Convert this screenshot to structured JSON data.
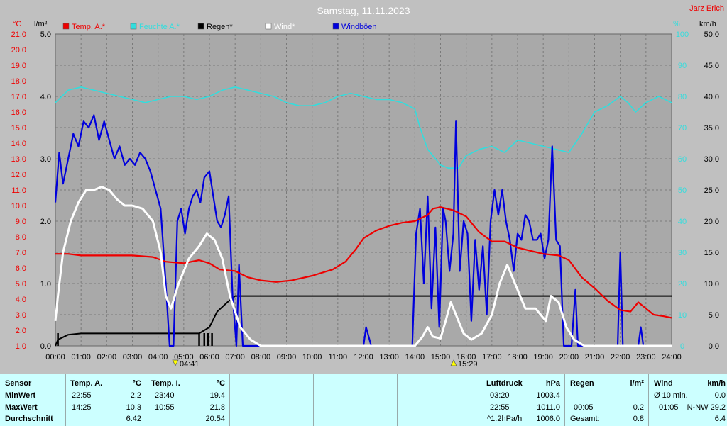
{
  "header": {
    "title": "Samstag, 11.11.2023",
    "author": "Jarz Erich",
    "unit_c": "°C",
    "unit_lm2": "l/m²",
    "unit_pct": "%",
    "unit_kmh": "km/h"
  },
  "legend": [
    {
      "name": "Temp. A.*",
      "color": "#ee0000"
    },
    {
      "name": "Feuchte A.*",
      "color": "#33dddd"
    },
    {
      "name": "Regen*",
      "color": "#000000"
    },
    {
      "name": "Wind*",
      "color": "#ffffff"
    },
    {
      "name": "Windböen",
      "color": "#0000dd"
    }
  ],
  "markers": {
    "sunrise": "04:41",
    "sunset": "15:29"
  },
  "chart_data": {
    "type": "line",
    "x_range": [
      0,
      24
    ],
    "x_ticks": [
      "00:00",
      "01:00",
      "02:00",
      "03:00",
      "04:00",
      "05:00",
      "06:00",
      "07:00",
      "08:00",
      "09:00",
      "10:00",
      "11:00",
      "12:00",
      "13:00",
      "14:00",
      "15:00",
      "16:00",
      "17:00",
      "18:00",
      "19:00",
      "20:00",
      "21:00",
      "22:00",
      "23:00",
      "24:00"
    ],
    "axes": {
      "temperature_c": {
        "range": [
          1.0,
          21.0
        ],
        "ticks": [
          "1.0",
          "2.0",
          "3.0",
          "4.0",
          "5.0",
          "6.0",
          "7.0",
          "8.0",
          "9.0",
          "10.0",
          "11.0",
          "12.0",
          "13.0",
          "14.0",
          "15.0",
          "16.0",
          "17.0",
          "18.0",
          "19.0",
          "20.0",
          "21.0"
        ]
      },
      "rain_lm2": {
        "range": [
          0.0,
          5.0
        ],
        "ticks": [
          "0.0",
          "1.0",
          "2.0",
          "3.0",
          "4.0",
          "5.0"
        ]
      },
      "humidity_pct": {
        "range": [
          0,
          100
        ],
        "ticks": [
          "0",
          "10",
          "20",
          "30",
          "40",
          "50",
          "60",
          "70",
          "80",
          "90",
          "100"
        ]
      },
      "wind_kmh": {
        "range": [
          0.0,
          50.0
        ],
        "ticks": [
          "0.0",
          "5.0",
          "10.0",
          "15.0",
          "20.0",
          "25.0",
          "30.0",
          "35.0",
          "40.0",
          "45.0",
          "50.0"
        ]
      }
    },
    "grid": true,
    "series": [
      {
        "name": "Temp. A.*",
        "axis": "temperature_c",
        "color": "#ee0000",
        "points": [
          [
            0,
            6.9
          ],
          [
            0.5,
            6.9
          ],
          [
            1,
            6.8
          ],
          [
            2,
            6.8
          ],
          [
            3,
            6.8
          ],
          [
            3.8,
            6.7
          ],
          [
            4.3,
            6.4
          ],
          [
            5,
            6.3
          ],
          [
            5.6,
            6.5
          ],
          [
            6,
            6.3
          ],
          [
            6.4,
            5.9
          ],
          [
            7,
            5.8
          ],
          [
            7.5,
            5.4
          ],
          [
            8,
            5.2
          ],
          [
            8.6,
            5.1
          ],
          [
            9.2,
            5.2
          ],
          [
            10,
            5.5
          ],
          [
            10.8,
            5.9
          ],
          [
            11.3,
            6.4
          ],
          [
            11.7,
            7.2
          ],
          [
            12,
            7.9
          ],
          [
            12.5,
            8.4
          ],
          [
            13,
            8.7
          ],
          [
            13.5,
            8.9
          ],
          [
            14,
            9.0
          ],
          [
            14.5,
            9.4
          ],
          [
            14.7,
            9.8
          ],
          [
            15,
            9.9
          ],
          [
            15.5,
            9.7
          ],
          [
            16,
            9.3
          ],
          [
            16.5,
            8.3
          ],
          [
            17,
            7.7
          ],
          [
            17.5,
            7.7
          ],
          [
            18,
            7.3
          ],
          [
            18.5,
            7.1
          ],
          [
            19,
            6.9
          ],
          [
            19.6,
            6.8
          ],
          [
            20,
            6.5
          ],
          [
            20.5,
            5.4
          ],
          [
            21,
            4.7
          ],
          [
            21.5,
            3.9
          ],
          [
            22,
            3.3
          ],
          [
            22.4,
            3.2
          ],
          [
            22.7,
            3.8
          ],
          [
            23,
            3.4
          ],
          [
            23.3,
            3.0
          ],
          [
            23.7,
            2.9
          ],
          [
            24,
            2.8
          ]
        ]
      },
      {
        "name": "Feuchte A.*",
        "axis": "humidity_pct",
        "color": "#33dddd",
        "points": [
          [
            0,
            78
          ],
          [
            0.5,
            82
          ],
          [
            1,
            83
          ],
          [
            1.5,
            82
          ],
          [
            2,
            81
          ],
          [
            2.5,
            80
          ],
          [
            3,
            79
          ],
          [
            3.5,
            78
          ],
          [
            4,
            79
          ],
          [
            4.5,
            80
          ],
          [
            5,
            80
          ],
          [
            5.5,
            79
          ],
          [
            6,
            80
          ],
          [
            6.5,
            82
          ],
          [
            7,
            83
          ],
          [
            7.5,
            82
          ],
          [
            8,
            81
          ],
          [
            8.5,
            80
          ],
          [
            9,
            78
          ],
          [
            9.5,
            77
          ],
          [
            10,
            77
          ],
          [
            10.5,
            78
          ],
          [
            11,
            80
          ],
          [
            11.5,
            81
          ],
          [
            12,
            80
          ],
          [
            12.5,
            79
          ],
          [
            13,
            79
          ],
          [
            13.5,
            78
          ],
          [
            14,
            76
          ],
          [
            14.2,
            70
          ],
          [
            14.5,
            63
          ],
          [
            15,
            58
          ],
          [
            15.3,
            57
          ],
          [
            15.7,
            57
          ],
          [
            16,
            61
          ],
          [
            16.5,
            63
          ],
          [
            17,
            64
          ],
          [
            17.5,
            62
          ],
          [
            18,
            66
          ],
          [
            18.5,
            65
          ],
          [
            19,
            64
          ],
          [
            19.5,
            63
          ],
          [
            20,
            62
          ],
          [
            20.5,
            68
          ],
          [
            21,
            75
          ],
          [
            21.5,
            77
          ],
          [
            22,
            80
          ],
          [
            22.3,
            78
          ],
          [
            22.6,
            75
          ],
          [
            23,
            78
          ],
          [
            23.5,
            80
          ],
          [
            24,
            78
          ]
        ]
      },
      {
        "name": "Regen*",
        "axis": "rain_lm2",
        "color": "#000000",
        "points": [
          [
            0,
            0
          ],
          [
            0.1,
            0.1
          ],
          [
            0.5,
            0.18
          ],
          [
            1,
            0.2
          ],
          [
            2,
            0.2
          ],
          [
            3,
            0.2
          ],
          [
            4,
            0.2
          ],
          [
            5,
            0.2
          ],
          [
            5.6,
            0.2
          ],
          [
            6,
            0.3
          ],
          [
            6.3,
            0.55
          ],
          [
            6.7,
            0.7
          ],
          [
            7,
            0.8
          ],
          [
            8,
            0.8
          ],
          [
            12,
            0.8
          ],
          [
            16,
            0.8
          ],
          [
            20,
            0.8
          ],
          [
            24,
            0.8
          ]
        ]
      },
      {
        "name": "Wind*",
        "axis": "wind_kmh",
        "color": "#ffffff",
        "points": [
          [
            0,
            4
          ],
          [
            0.1,
            8
          ],
          [
            0.3,
            15
          ],
          [
            0.6,
            20
          ],
          [
            0.9,
            23
          ],
          [
            1.2,
            25
          ],
          [
            1.5,
            25
          ],
          [
            1.8,
            25.5
          ],
          [
            2.1,
            25
          ],
          [
            2.4,
            23.5
          ],
          [
            2.7,
            22.5
          ],
          [
            3,
            22.5
          ],
          [
            3.4,
            22
          ],
          [
            3.8,
            20
          ],
          [
            4.1,
            15
          ],
          [
            4.3,
            8
          ],
          [
            4.5,
            6
          ],
          [
            4.8,
            10
          ],
          [
            5.2,
            14
          ],
          [
            5.6,
            16
          ],
          [
            5.9,
            18
          ],
          [
            6.2,
            17
          ],
          [
            6.5,
            14
          ],
          [
            6.8,
            8
          ],
          [
            7.2,
            3
          ],
          [
            7.6,
            1
          ],
          [
            8,
            0
          ],
          [
            13,
            0
          ],
          [
            14,
            0
          ],
          [
            14.3,
            1.5
          ],
          [
            14.5,
            3
          ],
          [
            14.7,
            1.5
          ],
          [
            15,
            1.2
          ],
          [
            15.2,
            4
          ],
          [
            15.4,
            7
          ],
          [
            15.6,
            5
          ],
          [
            15.9,
            2
          ],
          [
            16.2,
            1
          ],
          [
            16.6,
            2
          ],
          [
            17,
            5
          ],
          [
            17.3,
            10
          ],
          [
            17.6,
            13
          ],
          [
            17.9,
            10
          ],
          [
            18.3,
            6
          ],
          [
            18.7,
            6
          ],
          [
            19.1,
            4
          ],
          [
            19.3,
            8
          ],
          [
            19.6,
            7
          ],
          [
            19.9,
            3
          ],
          [
            20.2,
            1
          ],
          [
            20.6,
            0
          ],
          [
            24,
            0
          ]
        ]
      },
      {
        "name": "Windböen",
        "axis": "wind_kmh",
        "color": "#0000dd",
        "points": [
          [
            0,
            23
          ],
          [
            0.15,
            31
          ],
          [
            0.3,
            26
          ],
          [
            0.5,
            30
          ],
          [
            0.7,
            34
          ],
          [
            0.9,
            32
          ],
          [
            1.1,
            36
          ],
          [
            1.3,
            35
          ],
          [
            1.5,
            37
          ],
          [
            1.7,
            33
          ],
          [
            1.9,
            36
          ],
          [
            2.1,
            33
          ],
          [
            2.3,
            30
          ],
          [
            2.5,
            32
          ],
          [
            2.7,
            29
          ],
          [
            2.9,
            30
          ],
          [
            3.1,
            29
          ],
          [
            3.3,
            31
          ],
          [
            3.5,
            30
          ],
          [
            3.7,
            28
          ],
          [
            3.9,
            25
          ],
          [
            4.1,
            22
          ],
          [
            4.3,
            10
          ],
          [
            4.45,
            0
          ],
          [
            4.6,
            0
          ],
          [
            4.75,
            20
          ],
          [
            4.9,
            22
          ],
          [
            5.05,
            18
          ],
          [
            5.2,
            22
          ],
          [
            5.35,
            24
          ],
          [
            5.5,
            25
          ],
          [
            5.65,
            23
          ],
          [
            5.8,
            27
          ],
          [
            6.0,
            28
          ],
          [
            6.15,
            24
          ],
          [
            6.3,
            20
          ],
          [
            6.45,
            19
          ],
          [
            6.6,
            21
          ],
          [
            6.75,
            24
          ],
          [
            6.9,
            8
          ],
          [
            7.05,
            0
          ],
          [
            7.15,
            13
          ],
          [
            7.3,
            0
          ],
          [
            12.0,
            0
          ],
          [
            12.1,
            3
          ],
          [
            12.3,
            0
          ],
          [
            13.9,
            0
          ],
          [
            14.05,
            18
          ],
          [
            14.2,
            22
          ],
          [
            14.35,
            10
          ],
          [
            14.5,
            24
          ],
          [
            14.65,
            6
          ],
          [
            14.8,
            19
          ],
          [
            14.95,
            3
          ],
          [
            15.1,
            22
          ],
          [
            15.2,
            20
          ],
          [
            15.35,
            12
          ],
          [
            15.5,
            18
          ],
          [
            15.6,
            36
          ],
          [
            15.75,
            12
          ],
          [
            15.9,
            20
          ],
          [
            16.05,
            18
          ],
          [
            16.2,
            4
          ],
          [
            16.35,
            17
          ],
          [
            16.5,
            9
          ],
          [
            16.65,
            16
          ],
          [
            16.8,
            5
          ],
          [
            16.95,
            20
          ],
          [
            17.1,
            25
          ],
          [
            17.25,
            21
          ],
          [
            17.4,
            25
          ],
          [
            17.55,
            20
          ],
          [
            17.7,
            17
          ],
          [
            17.85,
            12
          ],
          [
            18.0,
            18
          ],
          [
            18.15,
            17
          ],
          [
            18.3,
            21
          ],
          [
            18.45,
            20
          ],
          [
            18.6,
            17
          ],
          [
            18.75,
            17
          ],
          [
            18.9,
            18
          ],
          [
            19.05,
            14
          ],
          [
            19.2,
            17
          ],
          [
            19.35,
            32
          ],
          [
            19.5,
            17
          ],
          [
            19.65,
            16
          ],
          [
            19.8,
            0
          ],
          [
            19.95,
            0
          ],
          [
            20.1,
            0
          ],
          [
            20.25,
            9
          ],
          [
            20.35,
            0
          ],
          [
            21.9,
            0
          ],
          [
            22.0,
            15
          ],
          [
            22.1,
            0
          ],
          [
            22.7,
            0
          ],
          [
            22.8,
            3
          ],
          [
            22.9,
            0
          ],
          [
            24,
            0
          ]
        ]
      }
    ]
  },
  "table": {
    "sensor": {
      "header": "Sensor",
      "rows": [
        "MinWert",
        "MaxWert",
        "Durchschnitt"
      ]
    },
    "temp_a": {
      "header": "Temp. A.",
      "unit": "°C",
      "rows": [
        [
          "22:55",
          "2.2"
        ],
        [
          "14:25",
          "10.3"
        ],
        [
          "",
          "6.42"
        ]
      ]
    },
    "temp_i": {
      "header": "Temp. I.",
      "unit": "°C",
      "rows": [
        [
          "23:40",
          "19.4"
        ],
        [
          "10:55",
          "21.8"
        ],
        [
          "",
          "20.54"
        ]
      ]
    },
    "luftdruck": {
      "header": "Luftdruck",
      "unit": "hPa",
      "rows": [
        [
          "03:20",
          "1003.4"
        ],
        [
          "22:55",
          "1011.0"
        ],
        [
          "^1.2hPa/h",
          "1006.0"
        ]
      ]
    },
    "regen": {
      "header": "Regen",
      "unit": "l/m²",
      "rows": [
        [
          "",
          ""
        ],
        [
          "00:05",
          "0.2"
        ],
        [
          "Gesamt:",
          "0.8"
        ]
      ]
    },
    "wind": {
      "header": "Wind",
      "unit": "km/h",
      "rows": [
        [
          "Ø 10 min.",
          "0.0"
        ],
        [
          "01:05",
          "N-NW 29.2"
        ],
        [
          "",
          "6.4"
        ]
      ]
    }
  }
}
